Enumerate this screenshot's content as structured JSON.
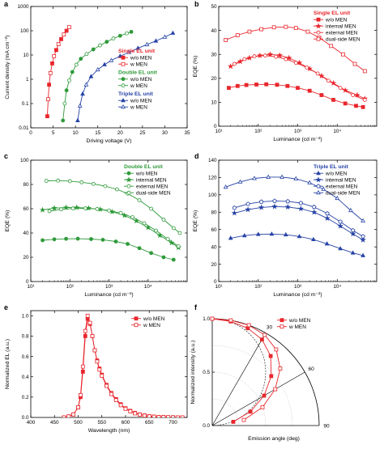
{
  "colors": {
    "red": "#e8262c",
    "green": "#2e9a3a",
    "blue": "#2743a6",
    "axis": "#000000"
  },
  "chart_data": [
    {
      "panel": "a",
      "type": "line",
      "xscale": "linear",
      "yscale": "log",
      "xlabel": "Driving voltage (V)",
      "ylabel": "Current density (mA cm⁻²)",
      "xlim": [
        0,
        35
      ],
      "ylim": [
        0.01,
        1000
      ],
      "xticks": [
        0,
        5,
        10,
        15,
        20,
        25,
        30,
        35
      ],
      "yticks": [
        0.01,
        0.1,
        1,
        10,
        100,
        1000
      ],
      "ytick_labels": [
        "0.01",
        "0.1",
        "1",
        "10",
        "100",
        "1000"
      ],
      "legend": {
        "position": "right",
        "groups": [
          {
            "title": "Single EL unit",
            "color": "red",
            "entries": [
              {
                "label": "w/o MEN",
                "marker": "square",
                "filled": true
              },
              {
                "label": "w    MEN",
                "marker": "square",
                "filled": false
              }
            ]
          },
          {
            "title": "Double EL unit",
            "color": "green",
            "entries": [
              {
                "label": "w/o MEN",
                "marker": "circle",
                "filled": true
              },
              {
                "label": "w    MEN",
                "marker": "circle",
                "filled": false
              }
            ]
          },
          {
            "title": "Triple EL unit",
            "color": "blue",
            "entries": [
              {
                "label": "w/o MEN",
                "marker": "triangle",
                "filled": true
              },
              {
                "label": "w    MEN",
                "marker": "triangle",
                "filled": false
              }
            ]
          }
        ]
      },
      "series": [
        {
          "color": "red",
          "marker": "square",
          "x": [
            3.7,
            3.9,
            4.1,
            4.4,
            4.8,
            5.2,
            5.7,
            6.2,
            6.8,
            7.4,
            8.0,
            8.6
          ],
          "y": [
            0.03,
            0.15,
            0.6,
            1.8,
            4.5,
            9,
            16,
            28,
            45,
            70,
            100,
            140
          ]
        },
        {
          "color": "green",
          "marker": "circle",
          "x": [
            7.2,
            7.6,
            8.0,
            8.6,
            9.3,
            10.2,
            11.2,
            12.5,
            14,
            15.5,
            17,
            18.5,
            20,
            21.5,
            22.5
          ],
          "y": [
            0.02,
            0.1,
            0.35,
            0.9,
            2,
            4,
            7,
            11,
            17,
            25,
            35,
            48,
            62,
            78,
            90
          ]
        },
        {
          "color": "blue",
          "marker": "triangle",
          "x": [
            10.5,
            11,
            11.6,
            12.4,
            13.5,
            15,
            16.5,
            18,
            20,
            22,
            24,
            26,
            28,
            30,
            31.8
          ],
          "y": [
            0.02,
            0.08,
            0.25,
            0.6,
            1.3,
            2.5,
            4,
            6,
            9,
            13,
            19,
            27,
            38,
            55,
            80
          ]
        }
      ]
    },
    {
      "panel": "b",
      "type": "line",
      "xscale": "log",
      "yscale": "linear",
      "xlabel": "Luminance (cd m⁻²)",
      "ylabel": "EQE (%)",
      "xlim": [
        10,
        100000
      ],
      "ylim": [
        0,
        50
      ],
      "xticks": [
        10,
        100,
        1000,
        10000
      ],
      "xtick_labels": [
        "10¹",
        "10²",
        "10³",
        "10⁴"
      ],
      "yticks": [
        0,
        10,
        20,
        30,
        40,
        50
      ],
      "legend": {
        "position": "top-right",
        "title": "Single EL unit",
        "color": "red",
        "entries": [
          {
            "label": "w/o MEN",
            "marker": "square",
            "filled": true
          },
          {
            "label": "internal MEN",
            "marker": "star",
            "filled": true
          },
          {
            "label": "external MEN",
            "marker": "circle",
            "filled": false
          },
          {
            "label": "dual-side MEN",
            "marker": "square",
            "filled": false
          }
        ]
      },
      "series": [
        {
          "label": "w/o MEN",
          "marker": "square",
          "filled": true,
          "x": [
            18,
            30,
            50,
            90,
            160,
            300,
            550,
            1000,
            2000,
            4000,
            8000,
            16000,
            30000,
            45000
          ],
          "y": [
            16,
            16.8,
            17.2,
            17.4,
            17.5,
            17.3,
            16.8,
            16,
            14.8,
            13,
            11,
            9.5,
            8.5,
            8
          ]
        },
        {
          "label": "internal MEN",
          "marker": "star",
          "filled": true,
          "x": [
            20,
            35,
            60,
            110,
            200,
            350,
            600,
            1100,
            2000,
            4000,
            8000,
            16000,
            32000,
            50000
          ],
          "y": [
            25,
            27,
            28.5,
            29.5,
            30,
            29.6,
            28.5,
            26.5,
            24,
            21,
            18,
            15,
            13,
            11.5
          ]
        },
        {
          "label": "external MEN",
          "marker": "circle",
          "filled": false,
          "x": [
            25,
            45,
            80,
            150,
            280,
            500,
            900,
            1700,
            3200,
            6000,
            12000,
            25000,
            50000
          ],
          "y": [
            26,
            28,
            29.2,
            29.5,
            29,
            28,
            26.5,
            24.5,
            22,
            19,
            16,
            13,
            11
          ]
        },
        {
          "label": "dual-side MEN",
          "marker": "square",
          "filled": false,
          "x": [
            15,
            30,
            60,
            120,
            250,
            500,
            900,
            1800,
            3500,
            7000,
            14000,
            28000,
            50000
          ],
          "y": [
            36,
            38,
            39.5,
            40.5,
            41.3,
            41.5,
            41,
            39.5,
            37,
            33.5,
            30,
            26,
            23
          ]
        }
      ]
    },
    {
      "panel": "c",
      "type": "line",
      "xscale": "log",
      "yscale": "linear",
      "xlabel": "Luminance (cd m⁻²)",
      "ylabel": "EQE (%)",
      "xlim": [
        10,
        100000
      ],
      "ylim": [
        0,
        100
      ],
      "xticks": [
        10,
        100,
        1000,
        10000
      ],
      "xtick_labels": [
        "10¹",
        "10²",
        "10³",
        "10⁴"
      ],
      "yticks": [
        0,
        20,
        40,
        60,
        80,
        100
      ],
      "legend": {
        "position": "top-right",
        "title": "Double EL unit",
        "color": "green",
        "entries": [
          {
            "label": "w/o MEN",
            "marker": "circle",
            "filled": true
          },
          {
            "label": "internal MEN",
            "marker": "star",
            "filled": true
          },
          {
            "label": "external MEN",
            "marker": "circle",
            "filled": false
          },
          {
            "label": "dual-side MEN",
            "marker": "circle",
            "filled": false
          }
        ]
      },
      "series": [
        {
          "label": "w/o MEN",
          "marker": "circle",
          "filled": true,
          "x": [
            20,
            40,
            80,
            160,
            350,
            700,
            1500,
            3000,
            6000,
            12000,
            25000,
            45000
          ],
          "y": [
            34,
            34.8,
            35.2,
            35.3,
            35,
            34.4,
            33,
            31,
            27.5,
            23.5,
            20,
            18
          ]
        },
        {
          "label": "internal MEN",
          "marker": "star",
          "filled": true,
          "x": [
            20,
            40,
            80,
            150,
            300,
            600,
            1200,
            2500,
            5000,
            10000,
            20000,
            40000,
            60000
          ],
          "y": [
            59,
            60.5,
            61,
            61,
            60.5,
            59.5,
            57.5,
            54.5,
            50,
            44.5,
            38,
            32,
            28
          ]
        },
        {
          "label": "external MEN",
          "marker": "circle",
          "filled": false,
          "x": [
            30,
            60,
            120,
            250,
            500,
            1000,
            2000,
            4000,
            8000,
            16000,
            32000,
            60000
          ],
          "y": [
            58,
            59.5,
            60.2,
            60.3,
            59.8,
            58.5,
            56.5,
            53,
            48,
            42,
            35,
            29
          ]
        },
        {
          "label": "dual-side MEN",
          "marker": "circle",
          "filled": false,
          "x": [
            25,
            50,
            100,
            200,
            400,
            800,
            1600,
            3000,
            6000,
            12000,
            25000,
            45000,
            65000
          ],
          "y": [
            83,
            83.2,
            82.7,
            81.8,
            80.5,
            78.6,
            76,
            72.5,
            67,
            60,
            51,
            44,
            40
          ]
        }
      ]
    },
    {
      "panel": "d",
      "type": "line",
      "xscale": "log",
      "yscale": "linear",
      "xlabel": "Luminance (cd m⁻²)",
      "ylabel": "EQE (%)",
      "xlim": [
        10,
        100000
      ],
      "ylim": [
        0,
        140
      ],
      "xticks": [
        10,
        100,
        1000,
        10000
      ],
      "xtick_labels": [
        "10¹",
        "10²",
        "10³",
        "10⁴"
      ],
      "yticks": [
        0,
        20,
        40,
        60,
        80,
        100,
        120,
        140
      ],
      "legend": {
        "position": "top-right",
        "title": "Triple EL unit",
        "color": "blue",
        "entries": [
          {
            "label": "w/o MEN",
            "marker": "triangle",
            "filled": true
          },
          {
            "label": "internal MEN",
            "marker": "star",
            "filled": true
          },
          {
            "label": "external MEN",
            "marker": "pentagon",
            "filled": false
          },
          {
            "label": "dual-side MEN",
            "marker": "triangle",
            "filled": false
          }
        ]
      },
      "series": [
        {
          "label": "w/o MEN",
          "marker": "triangle",
          "filled": true,
          "x": [
            20,
            45,
            100,
            220,
            500,
            1100,
            2500,
            5500,
            12000,
            25000,
            45000
          ],
          "y": [
            50,
            53,
            54.5,
            54.8,
            54,
            52,
            48.5,
            43.5,
            38,
            33,
            30
          ]
        },
        {
          "label": "internal MEN",
          "marker": "star",
          "filled": true,
          "x": [
            25,
            55,
            120,
            260,
            560,
            1200,
            2600,
            5600,
            12000,
            25000,
            45000
          ],
          "y": [
            79,
            83,
            85.5,
            86.5,
            86,
            84,
            80,
            73,
            64,
            55,
            48
          ]
        },
        {
          "label": "external MEN",
          "marker": "pentagon",
          "filled": false,
          "x": [
            25,
            55,
            120,
            260,
            560,
            1200,
            2600,
            5600,
            12000,
            25000,
            45000
          ],
          "y": [
            85,
            89.5,
            92,
            93,
            92.5,
            90.5,
            86,
            78.5,
            69,
            59,
            52
          ]
        },
        {
          "label": "dual-side MEN",
          "marker": "triangle",
          "filled": false,
          "x": [
            15,
            35,
            80,
            180,
            400,
            900,
            2000,
            4500,
            10000,
            22000,
            45000
          ],
          "y": [
            109,
            115,
            119,
            120.5,
            120.5,
            118.5,
            114,
            106.5,
            96,
            82,
            70
          ]
        }
      ]
    },
    {
      "panel": "e",
      "type": "line",
      "xscale": "linear",
      "yscale": "linear",
      "xlabel": "Wavelength (nm)",
      "ylabel": "Normalized EL (a.u.)",
      "xlim": [
        400,
        730
      ],
      "ylim": [
        0,
        1.05
      ],
      "xticks": [
        400,
        450,
        500,
        550,
        600,
        650,
        700
      ],
      "yticks": [
        0,
        0.2,
        0.4,
        0.6,
        0.8,
        1.0
      ],
      "ytick_labels": [
        "0.0",
        "0.2",
        "0.4",
        "0.6",
        "0.8",
        "1.0"
      ],
      "legend": {
        "position": "top-right",
        "entries": [
          {
            "label": "w/o MEN",
            "marker": "square",
            "filled": true
          },
          {
            "label": "w    MEN",
            "marker": "square",
            "filled": false
          }
        ]
      },
      "series": [
        {
          "label": "w/o MEN",
          "marker": "square",
          "filled": true,
          "x": [
            470,
            480,
            490,
            500,
            505,
            510,
            515,
            520,
            525,
            530,
            535,
            540,
            545,
            550,
            560,
            570,
            580,
            590,
            600,
            610,
            620,
            630,
            640,
            650,
            660,
            670,
            680,
            690,
            700,
            710,
            720
          ],
          "y": [
            0.0,
            0.01,
            0.03,
            0.1,
            0.2,
            0.45,
            0.8,
            0.97,
            0.92,
            0.8,
            0.66,
            0.56,
            0.48,
            0.42,
            0.32,
            0.24,
            0.18,
            0.13,
            0.09,
            0.065,
            0.045,
            0.03,
            0.02,
            0.012,
            0.008,
            0.005,
            0.003,
            0.002,
            0.001,
            0.0,
            0.0
          ]
        },
        {
          "label": "w    MEN",
          "marker": "square",
          "filled": false,
          "x": [
            470,
            480,
            490,
            500,
            505,
            510,
            515,
            520,
            525,
            530,
            535,
            540,
            545,
            550,
            560,
            570,
            580,
            590,
            600,
            610,
            620,
            630,
            640,
            650,
            660,
            670,
            680,
            690,
            700,
            710,
            720
          ],
          "y": [
            0.0,
            0.01,
            0.03,
            0.1,
            0.22,
            0.5,
            0.85,
            1.0,
            0.93,
            0.8,
            0.66,
            0.55,
            0.47,
            0.41,
            0.31,
            0.23,
            0.17,
            0.12,
            0.085,
            0.06,
            0.04,
            0.028,
            0.018,
            0.011,
            0.007,
            0.004,
            0.003,
            0.002,
            0.001,
            0.0,
            0.0
          ]
        }
      ]
    },
    {
      "panel": "f",
      "type": "polar",
      "xlabel": "Emission angle (deg)",
      "ylabel": "Normalized intensity (a.u.)",
      "angle_range_deg": [
        0,
        90
      ],
      "rlim": [
        0,
        1.0
      ],
      "angle_ticks": [
        30,
        60,
        90
      ],
      "r_ticks": [
        0.0,
        0.5,
        1.0
      ],
      "r_tick_labels": [
        "0.0",
        "0.5",
        "1.0"
      ],
      "legend": {
        "position": "top-right",
        "entries": [
          {
            "label": "w/o MEN",
            "marker": "square",
            "filled": true
          },
          {
            "label": "w    MEN",
            "marker": "square",
            "filled": false
          }
        ]
      },
      "lambertian_reference": true,
      "series": [
        {
          "label": "w/o MEN",
          "marker": "square",
          "filled": true,
          "angle": [
            0,
            10,
            20,
            30,
            40,
            50,
            60,
            70,
            80
          ],
          "r": [
            1.0,
            0.99,
            0.97,
            0.93,
            0.85,
            0.72,
            0.56,
            0.38,
            0.2
          ]
        },
        {
          "label": "w    MEN",
          "marker": "square",
          "filled": false,
          "angle": [
            0,
            10,
            20,
            30,
            40,
            50,
            60,
            70,
            80
          ],
          "r": [
            1.0,
            1.0,
            1.0,
            0.98,
            0.93,
            0.83,
            0.68,
            0.5,
            0.3
          ]
        }
      ]
    }
  ]
}
